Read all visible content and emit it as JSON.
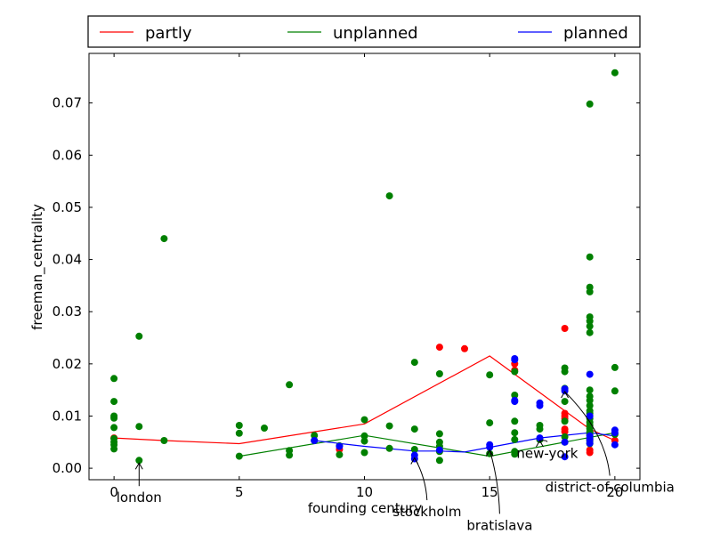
{
  "chart_data": {
    "type": "scatter",
    "xlabel": "founding century",
    "ylabel": "freeman_centrality",
    "xlim": [
      -1,
      21
    ],
    "ylim": [
      -0.0022,
      0.0795
    ],
    "x_ticks": [
      0,
      5,
      10,
      15,
      20
    ],
    "x_tick_labels": [
      "0",
      "5",
      "10",
      "15",
      "20"
    ],
    "y_ticks": [
      0.0,
      0.01,
      0.02,
      0.03,
      0.04,
      0.05,
      0.06,
      0.07
    ],
    "y_tick_labels": [
      "0.00",
      "0.01",
      "0.02",
      "0.03",
      "0.04",
      "0.05",
      "0.06",
      "0.07"
    ],
    "grid": false,
    "legend_placement": "top, above plot",
    "series": [
      {
        "name": "partly",
        "color": "#ff0000",
        "points": [
          [
            0,
            0.0058
          ],
          [
            9,
            0.0036
          ],
          [
            13,
            0.0232
          ],
          [
            14,
            0.0229
          ],
          [
            16,
            0.02
          ],
          [
            16,
            0.0188
          ],
          [
            18,
            0.0268
          ],
          [
            18,
            0.0105
          ],
          [
            18,
            0.01
          ],
          [
            18,
            0.0095
          ],
          [
            18,
            0.0075
          ],
          [
            18,
            0.007
          ],
          [
            19,
            0.0055
          ],
          [
            19,
            0.0035
          ],
          [
            19,
            0.003
          ],
          [
            20,
            0.0053
          ]
        ],
        "line": [
          [
            0,
            0.0058
          ],
          [
            2,
            0.0053
          ],
          [
            5,
            0.0047
          ],
          [
            10,
            0.0085
          ],
          [
            15,
            0.0215
          ],
          [
            19,
            0.0075
          ],
          [
            20,
            0.0053
          ]
        ]
      },
      {
        "name": "unplanned",
        "color": "#008000",
        "points": [
          [
            0,
            0.0172
          ],
          [
            0,
            0.0128
          ],
          [
            0,
            0.01
          ],
          [
            0,
            0.0096
          ],
          [
            0,
            0.0078
          ],
          [
            0,
            0.0057
          ],
          [
            0,
            0.005
          ],
          [
            0,
            0.0045
          ],
          [
            0,
            0.0037
          ],
          [
            1,
            0.0253
          ],
          [
            1,
            0.008
          ],
          [
            1,
            0.0015
          ],
          [
            2,
            0.044
          ],
          [
            2,
            0.0053
          ],
          [
            5,
            0.0082
          ],
          [
            5,
            0.0067
          ],
          [
            5,
            0.0023
          ],
          [
            6,
            0.0077
          ],
          [
            7,
            0.016
          ],
          [
            7,
            0.0034
          ],
          [
            7,
            0.0025
          ],
          [
            8,
            0.0063
          ],
          [
            8,
            0.0053
          ],
          [
            9,
            0.0043
          ],
          [
            9,
            0.0026
          ],
          [
            10,
            0.0093
          ],
          [
            10,
            0.0062
          ],
          [
            10,
            0.0052
          ],
          [
            10,
            0.003
          ],
          [
            11,
            0.0522
          ],
          [
            11,
            0.0081
          ],
          [
            11,
            0.0038
          ],
          [
            12,
            0.0203
          ],
          [
            12,
            0.0075
          ],
          [
            12,
            0.0036
          ],
          [
            13,
            0.0181
          ],
          [
            13,
            0.0066
          ],
          [
            13,
            0.005
          ],
          [
            13,
            0.0042
          ],
          [
            13,
            0.0032
          ],
          [
            13,
            0.0015
          ],
          [
            15,
            0.0179
          ],
          [
            15,
            0.0087
          ],
          [
            15,
            0.0028
          ],
          [
            16,
            0.0185
          ],
          [
            16,
            0.014
          ],
          [
            16,
            0.009
          ],
          [
            16,
            0.0068
          ],
          [
            16,
            0.0055
          ],
          [
            16,
            0.0032
          ],
          [
            16,
            0.0027
          ],
          [
            17,
            0.0082
          ],
          [
            17,
            0.0075
          ],
          [
            17,
            0.0055
          ],
          [
            18,
            0.0192
          ],
          [
            18,
            0.0185
          ],
          [
            18,
            0.0153
          ],
          [
            18,
            0.0128
          ],
          [
            18,
            0.009
          ],
          [
            18,
            0.006
          ],
          [
            18,
            0.005
          ],
          [
            19,
            0.0698
          ],
          [
            19,
            0.0405
          ],
          [
            19,
            0.0347
          ],
          [
            19,
            0.0338
          ],
          [
            19,
            0.029
          ],
          [
            19,
            0.0282
          ],
          [
            19,
            0.0272
          ],
          [
            19,
            0.026
          ],
          [
            19,
            0.015
          ],
          [
            19,
            0.0138
          ],
          [
            19,
            0.013
          ],
          [
            19,
            0.012
          ],
          [
            19,
            0.011
          ],
          [
            19,
            0.0105
          ],
          [
            19,
            0.0095
          ],
          [
            19,
            0.0088
          ],
          [
            19,
            0.0082
          ],
          [
            19,
            0.0076
          ],
          [
            19,
            0.007
          ],
          [
            19,
            0.0065
          ],
          [
            19,
            0.0058
          ],
          [
            19,
            0.0052
          ],
          [
            19,
            0.0047
          ],
          [
            20,
            0.0758
          ],
          [
            20,
            0.0193
          ],
          [
            20,
            0.0148
          ],
          [
            20,
            0.0065
          ]
        ],
        "line": [
          [
            5,
            0.0023
          ],
          [
            10,
            0.0063
          ],
          [
            15,
            0.0023
          ],
          [
            20,
            0.0068
          ]
        ]
      },
      {
        "name": "planned",
        "color": "#0000ff",
        "points": [
          [
            8,
            0.0053
          ],
          [
            9,
            0.0042
          ],
          [
            12,
            0.0025
          ],
          [
            12,
            0.0018
          ],
          [
            13,
            0.0035
          ],
          [
            15,
            0.0045
          ],
          [
            15,
            0.004
          ],
          [
            16,
            0.021
          ],
          [
            16,
            0.0208
          ],
          [
            16,
            0.013
          ],
          [
            16,
            0.0128
          ],
          [
            17,
            0.0125
          ],
          [
            17,
            0.012
          ],
          [
            17,
            0.0058
          ],
          [
            18,
            0.0152
          ],
          [
            18,
            0.0148
          ],
          [
            18,
            0.005
          ],
          [
            18,
            0.0022
          ],
          [
            19,
            0.018
          ],
          [
            19,
            0.01
          ],
          [
            19,
            0.0062
          ],
          [
            19,
            0.0055
          ],
          [
            19,
            0.0048
          ],
          [
            20,
            0.0073
          ],
          [
            20,
            0.0068
          ],
          [
            20,
            0.0045
          ]
        ],
        "line": [
          [
            8,
            0.0053
          ],
          [
            10,
            0.0042
          ],
          [
            12,
            0.0033
          ],
          [
            13,
            0.0033
          ],
          [
            14,
            0.0031
          ],
          [
            15,
            0.004
          ],
          [
            17,
            0.0058
          ],
          [
            19,
            0.0068
          ],
          [
            20,
            0.0062
          ]
        ]
      }
    ],
    "annotations": [
      {
        "text": "london",
        "target": [
          1,
          0.0015
        ],
        "label_at": [
          1,
          -0.0065
        ]
      },
      {
        "text": "stockholm",
        "target": [
          12,
          0.0025
        ],
        "label_at": [
          12.5,
          -0.0092
        ]
      },
      {
        "text": "bratislava",
        "target": [
          15,
          0.004
        ],
        "label_at": [
          15.4,
          -0.0118
        ]
      },
      {
        "text": "new-york",
        "target": [
          17,
          0.0058
        ],
        "label_at": [
          17.3,
          0.002
        ]
      },
      {
        "text": "district-of-columbia",
        "target": [
          18,
          0.0152
        ],
        "label_at": [
          19.8,
          -0.0045
        ]
      }
    ]
  }
}
